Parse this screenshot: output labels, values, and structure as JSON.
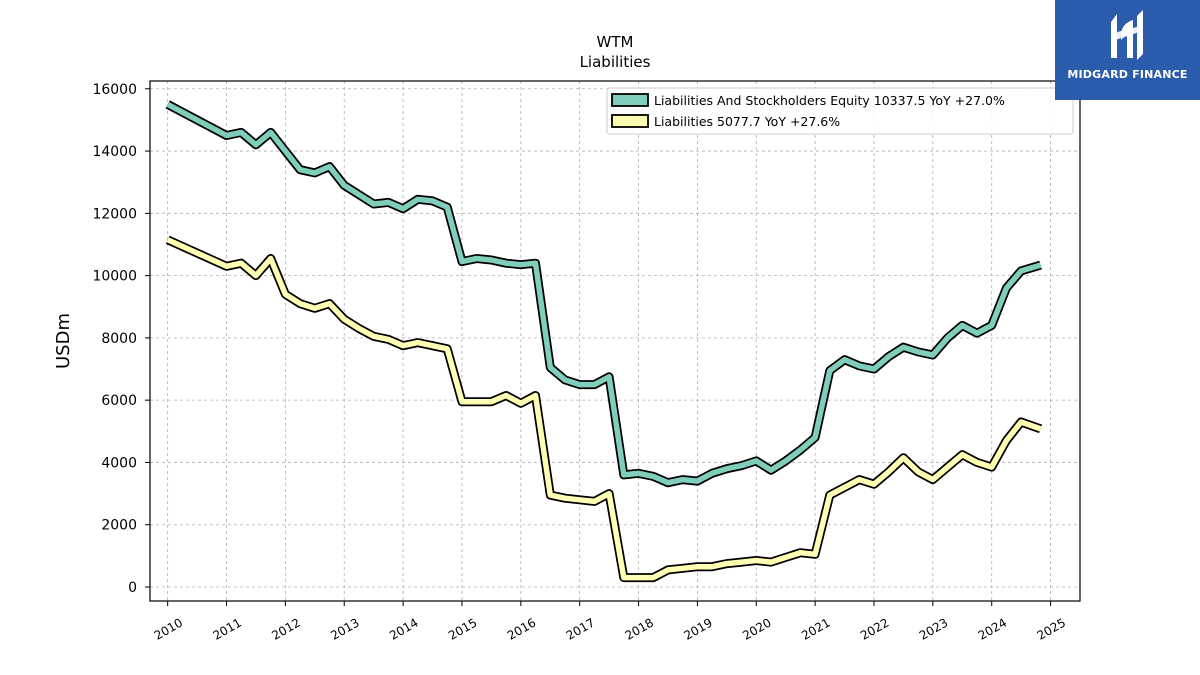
{
  "chart_data": {
    "type": "line",
    "title": "WTM",
    "subtitle": "Liabilities",
    "xlabel": "",
    "ylabel": "USDm",
    "xlim": [
      2009.7,
      2025.5
    ],
    "ylim": [
      -450,
      16250
    ],
    "yticks": [
      0,
      2000,
      4000,
      6000,
      8000,
      10000,
      12000,
      14000,
      16000
    ],
    "xticks": [
      2010,
      2011,
      2012,
      2013,
      2014,
      2015,
      2016,
      2017,
      2018,
      2019,
      2020,
      2021,
      2022,
      2023,
      2024,
      2025
    ],
    "grid": true,
    "legend_position": "top-right",
    "series": [
      {
        "name": "Liabilities And Stockholders Equity  10337.5 YoY +27.0%",
        "color": "#7fcdbb",
        "x": [
          2010.0,
          2011.0,
          2011.25,
          2011.5,
          2011.75,
          2012.0,
          2012.25,
          2012.5,
          2012.75,
          2013.0,
          2013.25,
          2013.5,
          2013.75,
          2014.0,
          2014.25,
          2014.5,
          2014.75,
          2015.0,
          2015.25,
          2015.5,
          2015.75,
          2016.0,
          2016.25,
          2016.5,
          2016.75,
          2017.0,
          2017.25,
          2017.5,
          2017.75,
          2018.0,
          2018.25,
          2018.5,
          2018.75,
          2019.0,
          2019.25,
          2019.5,
          2019.75,
          2020.0,
          2020.25,
          2020.5,
          2020.75,
          2021.0,
          2021.25,
          2021.5,
          2021.75,
          2022.0,
          2022.25,
          2022.5,
          2022.75,
          2023.0,
          2023.25,
          2023.5,
          2023.75,
          2024.0,
          2024.25,
          2024.5,
          2024.83
        ],
        "y": [
          15500,
          14500,
          14600,
          14200,
          14600,
          14000,
          13400,
          13300,
          13500,
          12900,
          12600,
          12300,
          12350,
          12150,
          12450,
          12400,
          12200,
          10450,
          10550,
          10500,
          10400,
          10350,
          10400,
          7050,
          6650,
          6500,
          6500,
          6750,
          3600,
          3650,
          3550,
          3350,
          3450,
          3400,
          3650,
          3800,
          3900,
          4050,
          3750,
          4050,
          4400,
          4800,
          6950,
          7300,
          7100,
          7000,
          7400,
          7700,
          7550,
          7450,
          8000,
          8400,
          8150,
          8400,
          9600,
          10150,
          10337.5
        ]
      },
      {
        "name": "Liabilities  5077.7 YoY +27.6%",
        "color": "#ffffb3",
        "x": [
          2010.0,
          2011.0,
          2011.25,
          2011.5,
          2011.75,
          2012.0,
          2012.25,
          2012.5,
          2012.75,
          2013.0,
          2013.25,
          2013.5,
          2013.75,
          2014.0,
          2014.25,
          2014.5,
          2014.75,
          2015.0,
          2015.25,
          2015.5,
          2015.75,
          2016.0,
          2016.25,
          2016.5,
          2016.75,
          2017.0,
          2017.25,
          2017.5,
          2017.75,
          2018.0,
          2018.25,
          2018.5,
          2018.75,
          2019.0,
          2019.25,
          2019.5,
          2019.75,
          2020.0,
          2020.25,
          2020.5,
          2020.75,
          2021.0,
          2021.25,
          2021.5,
          2021.75,
          2022.0,
          2022.25,
          2022.5,
          2022.75,
          2023.0,
          2023.25,
          2023.5,
          2023.75,
          2024.0,
          2024.25,
          2024.5,
          2024.83
        ],
        "y": [
          11150,
          10300,
          10400,
          10000,
          10550,
          9400,
          9100,
          8950,
          9100,
          8600,
          8300,
          8050,
          7950,
          7750,
          7850,
          7750,
          7650,
          5950,
          5950,
          5950,
          6150,
          5900,
          6150,
          2950,
          2850,
          2800,
          2750,
          3000,
          300,
          300,
          300,
          550,
          600,
          650,
          650,
          750,
          800,
          850,
          800,
          950,
          1100,
          1050,
          2950,
          3200,
          3450,
          3300,
          3700,
          4150,
          3700,
          3450,
          3850,
          4250,
          4000,
          3850,
          4700,
          5300,
          5077.7
        ]
      }
    ]
  },
  "logo": {
    "name": "MIDGARD FINANCE"
  }
}
